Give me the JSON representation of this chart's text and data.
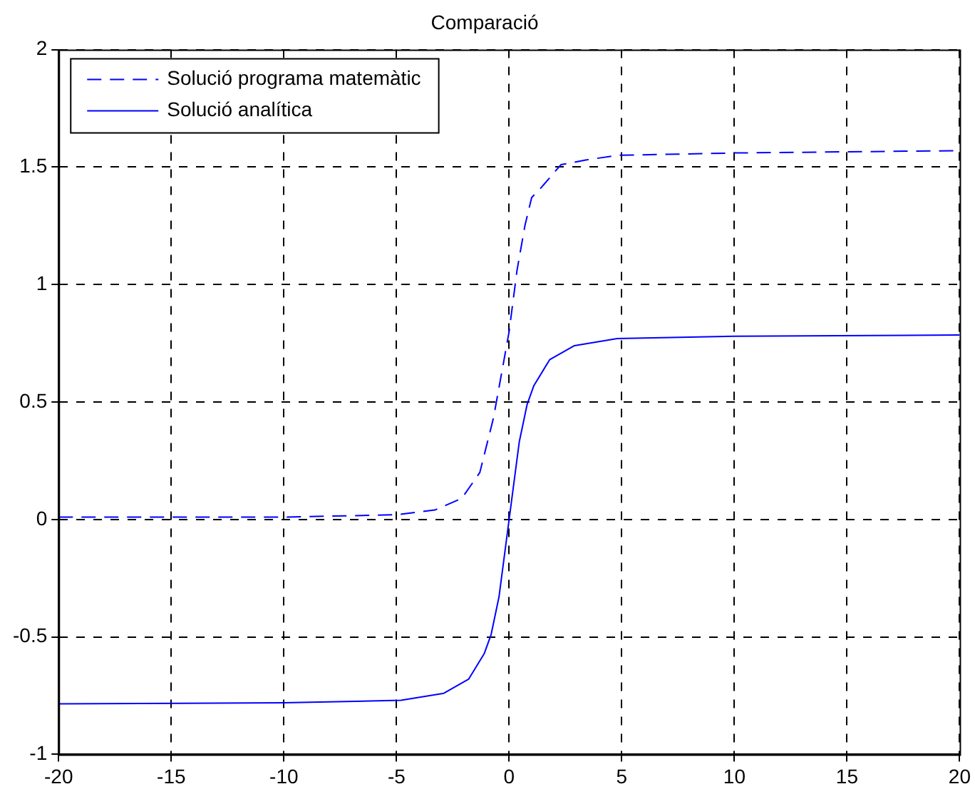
{
  "chart_data": {
    "type": "line",
    "title": "Comparació",
    "xlim": [
      -20,
      20
    ],
    "xticks": [
      -20,
      -15,
      -10,
      -5,
      0,
      5,
      10,
      15,
      20
    ],
    "ylim": [
      -1,
      2
    ],
    "yticks": [
      -1,
      -0.5,
      0,
      0.5,
      1,
      1.5,
      2
    ],
    "grid": true,
    "legend": "top left",
    "marker": "none",
    "series": [
      {
        "name": "Solució programa matemàtic",
        "color": "#0000ff",
        "line_style": "dashed",
        "x": [
          -20,
          -10,
          -5,
          -3.3,
          -2.1,
          -1.3,
          -0.7,
          -0.3,
          0,
          0.35,
          0.7,
          1,
          1.4,
          2.3,
          3.4,
          4.8,
          10,
          20
        ],
        "values": [
          0.01,
          0.01,
          0.02,
          0.04,
          0.09,
          0.2,
          0.43,
          0.64,
          0.8,
          1.06,
          1.25,
          1.37,
          1.41,
          1.51,
          1.53,
          1.55,
          1.56,
          1.57
        ]
      },
      {
        "name": "Solució analítica",
        "color": "#0000ff",
        "line_style": "solid",
        "x": [
          -20,
          -10,
          -4.8,
          -2.9,
          -1.8,
          -1.1,
          -0.8,
          -0.45,
          0,
          0.45,
          0.8,
          1.1,
          1.8,
          2.9,
          4.8,
          10,
          20
        ],
        "values": [
          -0.785,
          -0.78,
          -0.77,
          -0.74,
          -0.68,
          -0.57,
          -0.49,
          -0.33,
          0,
          0.33,
          0.49,
          0.57,
          0.68,
          0.74,
          0.77,
          0.78,
          0.785
        ]
      }
    ]
  }
}
